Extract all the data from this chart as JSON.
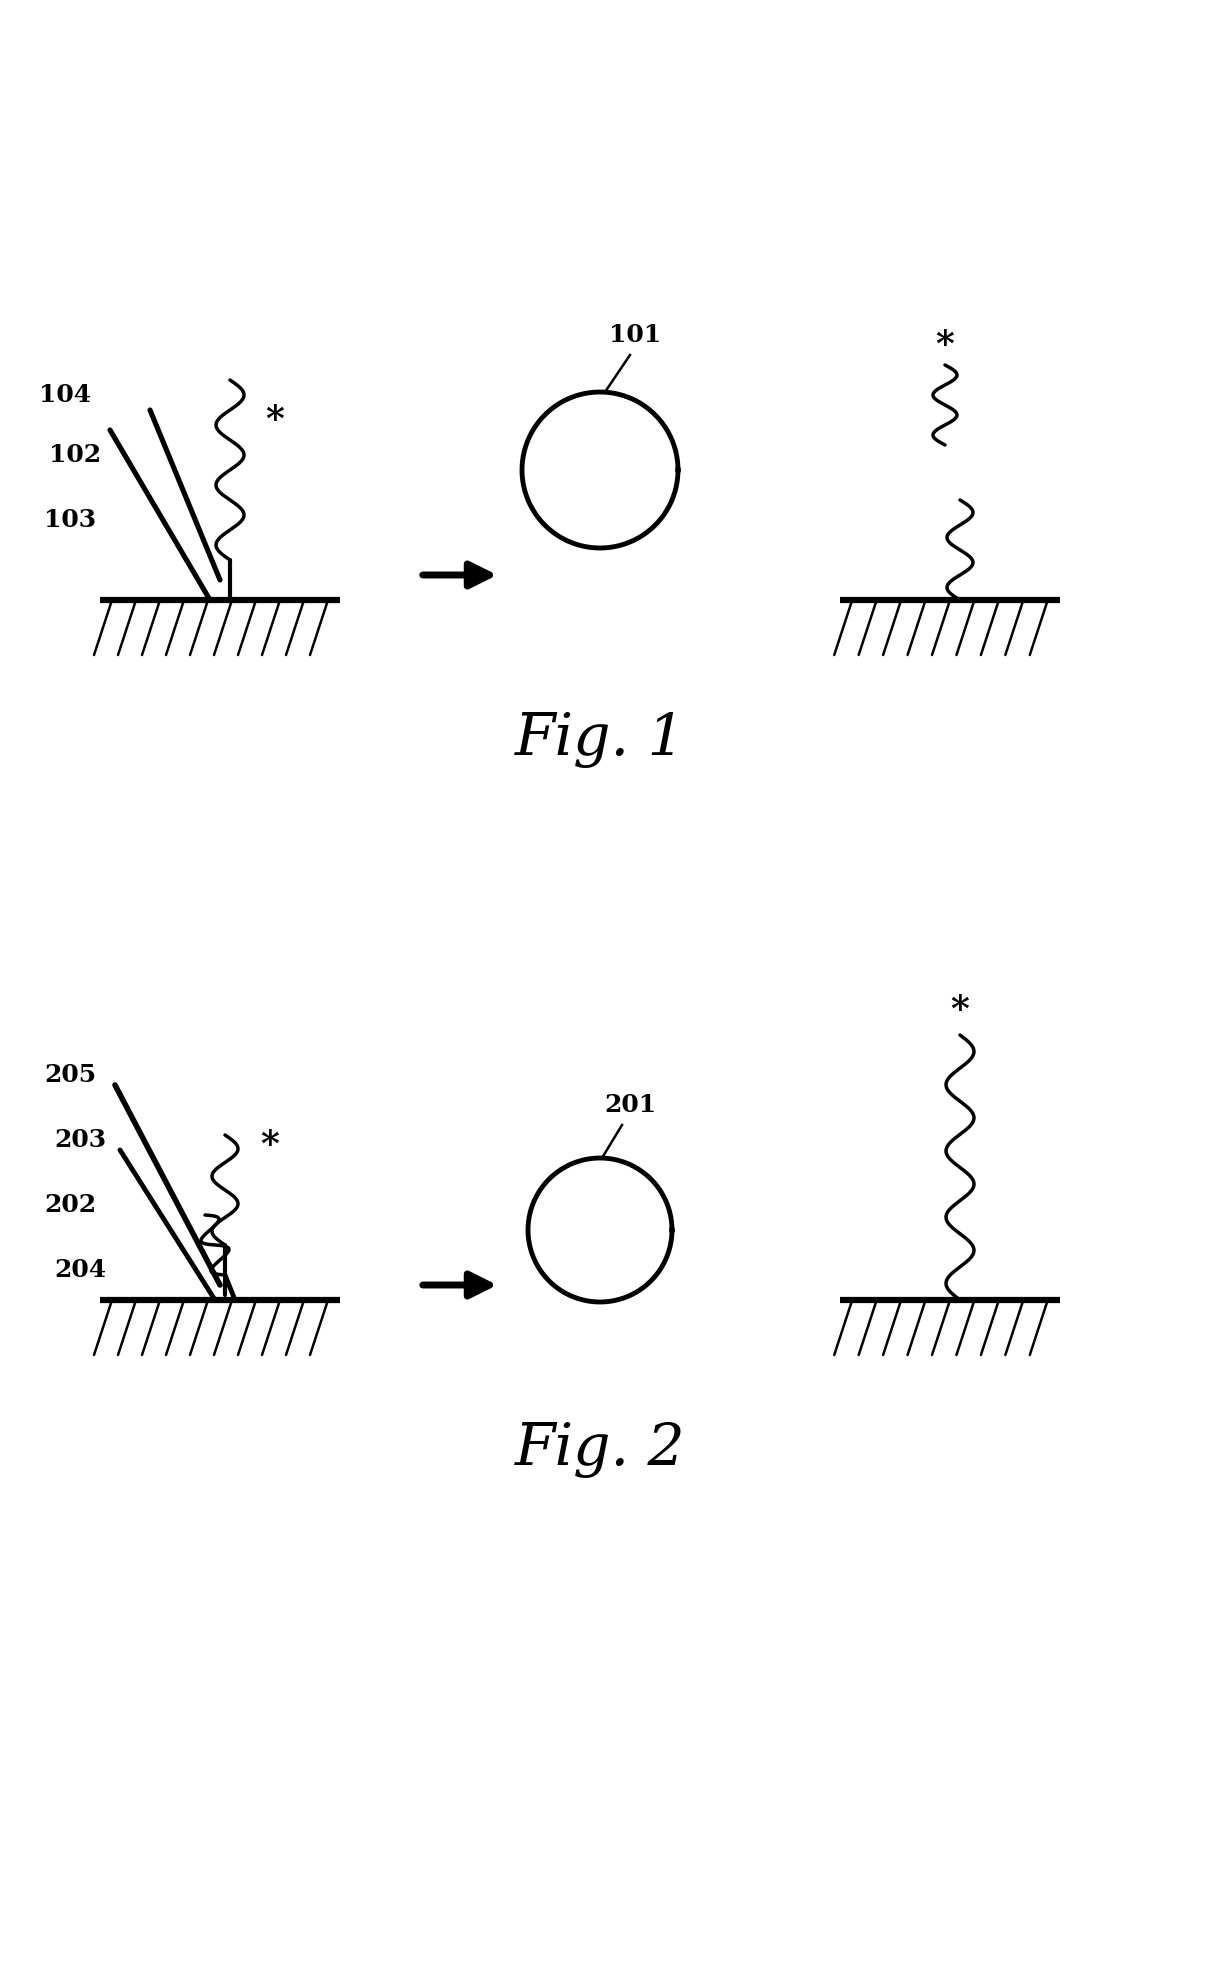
{
  "bg_color": "#ffffff",
  "fig_width": 12.19,
  "fig_height": 19.8,
  "fig1_label": "Fig. 1",
  "fig2_label": "Fig. 2",
  "line_color": "#000000",
  "line_width": 2.5,
  "label_fontsize": 18,
  "fig_label_fontsize": 42
}
